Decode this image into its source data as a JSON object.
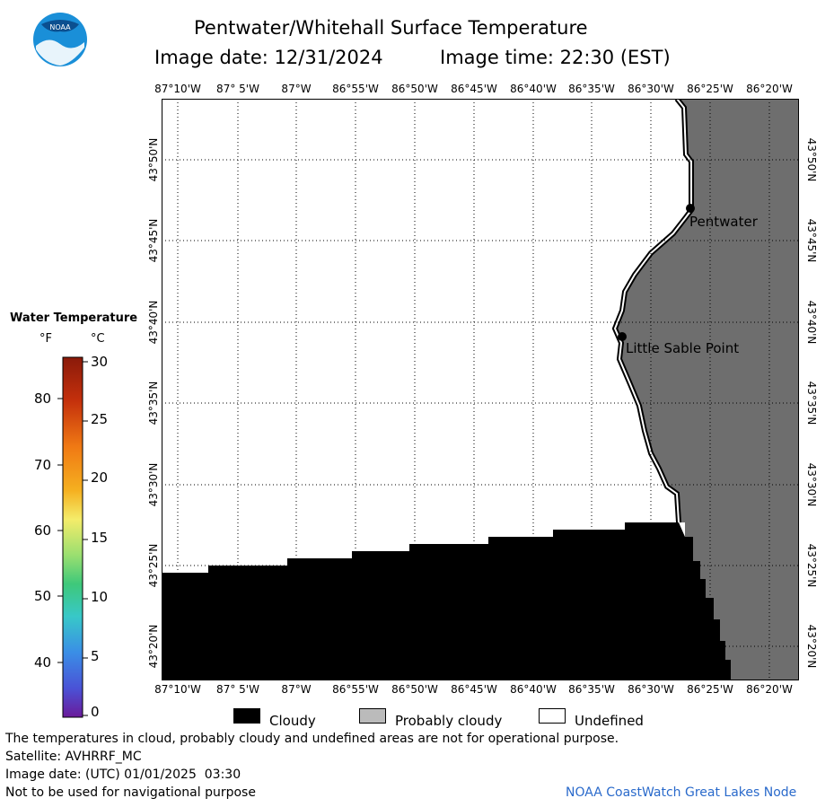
{
  "header": {
    "title": "Pentwater/Whitehall Surface Temperature",
    "image_date_label": "Image date: 12/31/2024",
    "image_time_label": "Image time: 22:30 (EST)",
    "logo_text": "NOAA"
  },
  "map": {
    "longitude_ticks": [
      "87°10'W",
      "87° 5'W",
      "87°W",
      "86°55'W",
      "86°50'W",
      "86°45'W",
      "86°40'W",
      "86°35'W",
      "86°30'W",
      "86°25'W",
      "86°20'W"
    ],
    "latitude_ticks": [
      "43°50'N",
      "43°45'N",
      "43°40'N",
      "43°35'N",
      "43°30'N",
      "43°25'N",
      "43°20'N"
    ],
    "places": [
      {
        "name": "Pentwater"
      },
      {
        "name": "Little Sable Point"
      }
    ],
    "colors": {
      "land": "#6e6e6e",
      "cloudy": "#000000",
      "undefined": "#ffffff",
      "probably_cloudy": "#bbbbbb"
    }
  },
  "scale": {
    "title": "Water Temperature",
    "f_unit": "°F",
    "c_unit": "°C",
    "f_ticks": [
      "80",
      "70",
      "60",
      "50",
      "40"
    ],
    "c_ticks": [
      "30",
      "25",
      "20",
      "15",
      "10",
      "5",
      "0"
    ]
  },
  "legend": {
    "cloudy": "Cloudy",
    "probably_cloudy": "Probably cloudy",
    "undefined": "Undefined"
  },
  "notes": {
    "line1": "The temperatures in cloud, probably cloudy and undefined areas are not for operational purpose.",
    "line2": "Satellite: AVHRRF_MC",
    "line3": "Image date: (UTC) 01/01/2025  03:30",
    "line4": "Not to be used for navigational purpose",
    "credit": "NOAA CoastWatch Great Lakes Node"
  }
}
